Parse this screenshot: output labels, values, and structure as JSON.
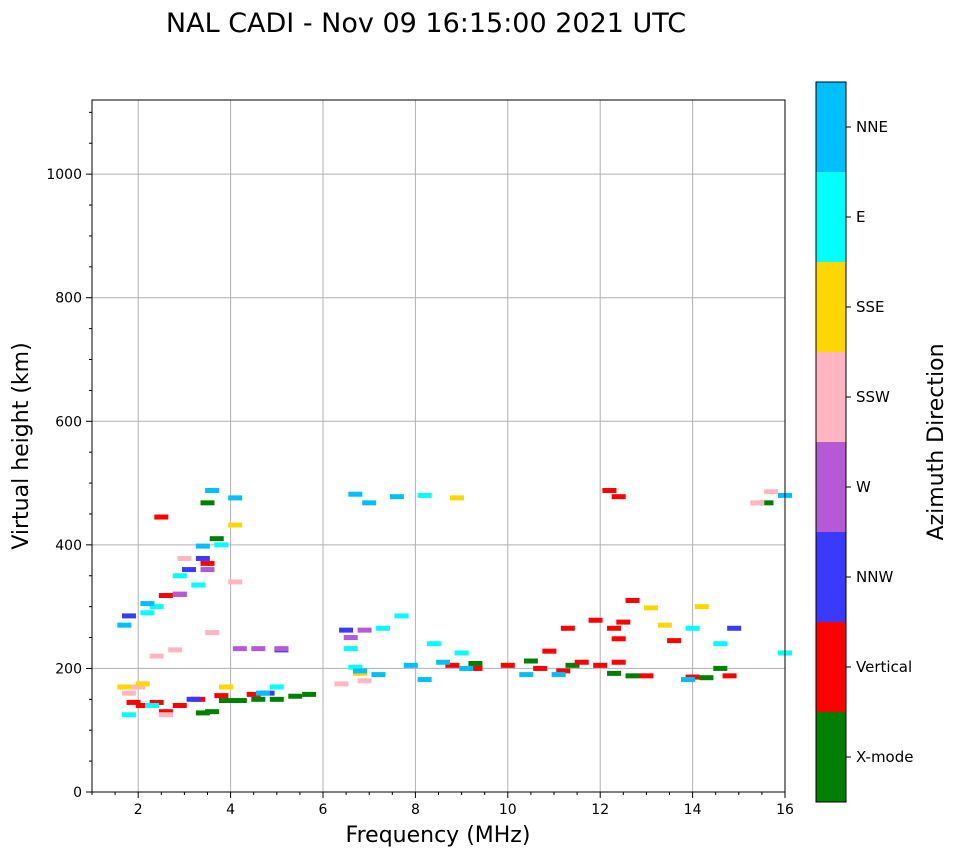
{
  "chart_data": {
    "type": "scatter",
    "title": "NAL CADI - Nov 09 16:15:00 2021 UTC",
    "xlabel": "Frequency (MHz)",
    "ylabel": "Virtual height (km)",
    "xlim": [
      1,
      16
    ],
    "ylim": [
      0,
      1120
    ],
    "xticks": [
      2,
      4,
      6,
      8,
      10,
      12,
      14,
      16
    ],
    "yticks": [
      0,
      200,
      400,
      600,
      800,
      1000
    ],
    "grid": true,
    "colorbar": {
      "label": "Azimuth Direction",
      "categories": [
        {
          "name": "X-mode",
          "color": "#008000"
        },
        {
          "name": "Vertical",
          "color": "#ff0000"
        },
        {
          "name": "NNW",
          "color": "#3a3aff"
        },
        {
          "name": "W",
          "color": "#b659d6"
        },
        {
          "name": "SSW",
          "color": "#ffb6c1"
        },
        {
          "name": "SSE",
          "color": "#ffd700"
        },
        {
          "name": "E",
          "color": "#00ffff"
        },
        {
          "name": "NNE",
          "color": "#00bfff"
        }
      ]
    },
    "series": [
      {
        "name": "X-mode",
        "points": [
          [
            3.4,
            128
          ],
          [
            3.6,
            130
          ],
          [
            3.9,
            148
          ],
          [
            4.2,
            148
          ],
          [
            4.6,
            150
          ],
          [
            5.0,
            150
          ],
          [
            5.4,
            155
          ],
          [
            5.7,
            158
          ],
          [
            9.3,
            208
          ],
          [
            10.5,
            212
          ],
          [
            11.4,
            205
          ],
          [
            12.3,
            192
          ],
          [
            12.7,
            188
          ],
          [
            14.3,
            185
          ],
          [
            14.6,
            200
          ],
          [
            15.6,
            468
          ],
          [
            3.5,
            468
          ],
          [
            3.7,
            410
          ]
        ]
      },
      {
        "name": "Vertical",
        "points": [
          [
            2.6,
            130
          ],
          [
            2.9,
            140
          ],
          [
            3.3,
            150
          ],
          [
            3.8,
            156
          ],
          [
            4.5,
            158
          ],
          [
            2.1,
            140
          ],
          [
            2.4,
            145
          ],
          [
            8.8,
            205
          ],
          [
            9.3,
            200
          ],
          [
            10.0,
            205
          ],
          [
            10.7,
            200
          ],
          [
            11.2,
            196
          ],
          [
            11.6,
            210
          ],
          [
            12.0,
            205
          ],
          [
            12.4,
            210
          ],
          [
            13.0,
            188
          ],
          [
            14.0,
            186
          ],
          [
            14.8,
            188
          ],
          [
            12.2,
            488
          ],
          [
            12.4,
            478
          ],
          [
            12.7,
            310
          ],
          [
            12.3,
            265
          ],
          [
            11.3,
            265
          ],
          [
            11.9,
            278
          ],
          [
            10.9,
            228
          ],
          [
            13.6,
            245
          ],
          [
            2.6,
            318
          ],
          [
            2.9,
            320
          ],
          [
            2.5,
            445
          ],
          [
            3.5,
            370
          ],
          [
            1.9,
            145
          ],
          [
            12.4,
            248
          ],
          [
            12.5,
            275
          ]
        ]
      },
      {
        "name": "NNW",
        "points": [
          [
            3.2,
            150
          ],
          [
            4.8,
            160
          ],
          [
            14.9,
            265
          ],
          [
            1.8,
            285
          ],
          [
            3.1,
            360
          ],
          [
            6.5,
            262
          ],
          [
            5.1,
            230
          ],
          [
            3.4,
            378
          ]
        ]
      },
      {
        "name": "W",
        "points": [
          [
            6.6,
            250
          ],
          [
            6.9,
            262
          ],
          [
            4.6,
            232
          ],
          [
            5.1,
            232
          ],
          [
            3.5,
            360
          ],
          [
            2.9,
            320
          ],
          [
            4.2,
            232
          ]
        ]
      },
      {
        "name": "SSW",
        "points": [
          [
            2.0,
            170
          ],
          [
            2.4,
            220
          ],
          [
            2.8,
            230
          ],
          [
            6.4,
            175
          ],
          [
            6.9,
            180
          ],
          [
            3.6,
            258
          ],
          [
            15.4,
            468
          ],
          [
            15.7,
            486
          ],
          [
            3.0,
            378
          ],
          [
            4.1,
            340
          ],
          [
            2.6,
            125
          ],
          [
            1.8,
            160
          ]
        ]
      },
      {
        "name": "SSE",
        "points": [
          [
            1.7,
            170
          ],
          [
            2.1,
            175
          ],
          [
            3.9,
            170
          ],
          [
            6.8,
            192
          ],
          [
            13.4,
            270
          ],
          [
            14.2,
            300
          ],
          [
            13.1,
            298
          ],
          [
            8.9,
            476
          ],
          [
            4.1,
            432
          ]
        ]
      },
      {
        "name": "E",
        "points": [
          [
            1.8,
            125
          ],
          [
            2.3,
            140
          ],
          [
            5.0,
            170
          ],
          [
            6.7,
            202
          ],
          [
            7.3,
            265
          ],
          [
            8.4,
            240
          ],
          [
            9.0,
            225
          ],
          [
            14.0,
            265
          ],
          [
            14.6,
            240
          ],
          [
            2.4,
            300
          ],
          [
            2.9,
            350
          ],
          [
            3.3,
            335
          ],
          [
            3.8,
            400
          ],
          [
            8.2,
            480
          ],
          [
            2.2,
            290
          ],
          [
            7.7,
            285
          ],
          [
            16.0,
            225
          ],
          [
            6.6,
            232
          ]
        ]
      },
      {
        "name": "NNE",
        "points": [
          [
            4.7,
            160
          ],
          [
            8.2,
            182
          ],
          [
            8.6,
            210
          ],
          [
            9.1,
            200
          ],
          [
            10.4,
            190
          ],
          [
            11.1,
            190
          ],
          [
            7.9,
            205
          ],
          [
            6.8,
            196
          ],
          [
            7.2,
            190
          ],
          [
            7.6,
            478
          ],
          [
            7.0,
            468
          ],
          [
            6.7,
            482
          ],
          [
            4.1,
            476
          ],
          [
            1.7,
            270
          ],
          [
            2.2,
            305
          ],
          [
            3.6,
            488
          ],
          [
            3.4,
            398
          ],
          [
            16.0,
            480
          ],
          [
            13.9,
            182
          ]
        ]
      }
    ]
  }
}
